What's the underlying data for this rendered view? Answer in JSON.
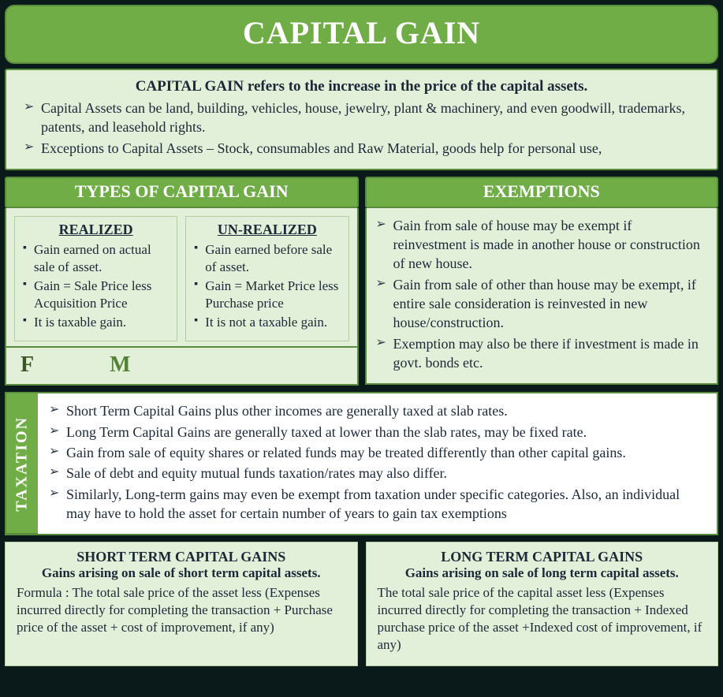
{
  "colors": {
    "primary_green": "#70ad47",
    "border_green": "#5a8c3e",
    "light_bg": "#e2efd9",
    "page_bg": "#0a1a1a",
    "text": "#1a2838",
    "white": "#ffffff",
    "f_color": "#375623",
    "m_color": "#548235"
  },
  "typography": {
    "family": "Garamond / Times serif",
    "title_size": 40,
    "section_head_size": 22,
    "body_size": 18
  },
  "title": "CAPITAL GAIN",
  "intro": {
    "lead": "CAPITAL GAIN refers to the increase in the price of the capital assets.",
    "bullets": [
      "Capital Assets can be land, building, vehicles, house, jewelry, plant & machinery, and even goodwill, trademarks, patents, and leasehold rights.",
      "Exceptions to Capital Assets – Stock, consumables and Raw Material, goods help for personal use,"
    ]
  },
  "types": {
    "heading": "TYPES OF CAPITAL GAIN",
    "realized": {
      "title": "REALIZED",
      "items": [
        "Gain earned on actual sale of asset.",
        "Gain = Sale Price less Acquisition Price",
        "It is taxable gain."
      ]
    },
    "unrealized": {
      "title": "UN-REALIZED",
      "items": [
        "Gain earned before sale of asset.",
        "Gain = Market Price less Purchase price",
        "It is not a taxable gain."
      ]
    },
    "fm": {
      "f": "F",
      "m": "M"
    }
  },
  "exemptions": {
    "heading": "EXEMPTIONS",
    "items": [
      "Gain from sale of house may be exempt if reinvestment is made in another house or construction of new house.",
      "Gain from sale of other than house may be exempt, if entire sale consideration is reinvested in new house/construction.",
      "Exemption may also be there if investment is made in govt. bonds etc."
    ]
  },
  "taxation": {
    "tab": "TAXATION",
    "items": [
      "Short Term Capital Gains plus other incomes are generally taxed at slab rates.",
      "Long Term Capital Gains are generally taxed at lower than the slab rates, may be fixed rate.",
      "Gain from sale of equity shares or related funds may be treated differently than other capital gains.",
      "Sale of debt and equity mutual funds taxation/rates may also differ.",
      "Similarly, Long-term gains may even be exempt from taxation under specific categories. Also, an individual may have to hold the asset for certain number of years to gain tax exemptions"
    ]
  },
  "shortTerm": {
    "title": "SHORT TERM CAPITAL GAINS",
    "subtitle": "Gains arising on sale of short term capital assets.",
    "body": "Formula : The total sale price of the asset less (Expenses incurred directly for completing the transaction + Purchase price of the asset + cost of improvement, if any)"
  },
  "longTerm": {
    "title": "LONG TERM CAPITAL GAINS",
    "subtitle": "Gains arising on sale of long term capital assets.",
    "body": "The total sale price of the capital asset less (Expenses incurred directly for completing the transaction + Indexed purchase price of the asset +Indexed cost of improvement, if any)"
  }
}
